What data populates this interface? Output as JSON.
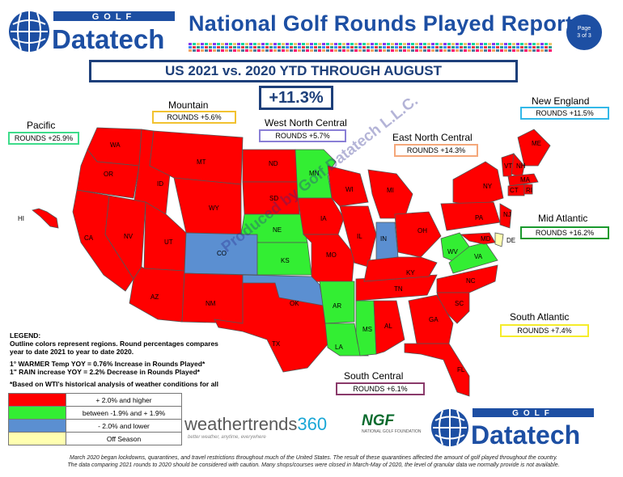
{
  "header": {
    "brand_top": "GOLF",
    "brand_main": "Datatech",
    "title": "National Golf Rounds Played Report",
    "page_badge_line1": "Page",
    "page_badge_line2": "3 of 3",
    "subtitle": "US 2021 vs. 2020 YTD THROUGH AUGUST",
    "total": "+11.3%"
  },
  "regions": {
    "pacific": {
      "name": "Pacific",
      "rounds": "ROUNDS +25.9%",
      "color": "#3ddc8a"
    },
    "mountain": {
      "name": "Mountain",
      "rounds": "ROUNDS +5.6%",
      "color": "#f2c230"
    },
    "west_north_central": {
      "name": "West North Central",
      "rounds": "ROUNDS +5.7%",
      "color": "#8a7fd6"
    },
    "east_north_central": {
      "name": "East North Central",
      "rounds": "ROUNDS +14.3%",
      "color": "#f4a77a"
    },
    "new_england": {
      "name": "New England",
      "rounds": "ROUNDS +11.5%",
      "color": "#33b8e8"
    },
    "mid_atlantic": {
      "name": "Mid Atlantic",
      "rounds": "ROUNDS +16.2%",
      "color": "#1a9a2e"
    },
    "south_atlantic": {
      "name": "South Atlantic",
      "rounds": "ROUNDS +7.4%",
      "color": "#f5ec2a"
    },
    "south_central": {
      "name": "South Central",
      "rounds": "ROUNDS +6.1%",
      "color": "#8a3a6a"
    }
  },
  "map_colors": {
    "up": "#ff0000",
    "flat": "#33ee33",
    "down": "#5b8fd1",
    "off": "#ffffb0"
  },
  "states": {
    "WA": {
      "label": "WA",
      "status": "up"
    },
    "OR": {
      "label": "OR",
      "status": "up"
    },
    "CA": {
      "label": "CA",
      "status": "up"
    },
    "ID": {
      "label": "ID",
      "status": "up"
    },
    "NV": {
      "label": "NV",
      "status": "up"
    },
    "MT": {
      "label": "MT",
      "status": "up"
    },
    "WY": {
      "label": "WY",
      "status": "up"
    },
    "UT": {
      "label": "UT",
      "status": "up"
    },
    "CO": {
      "label": "CO",
      "status": "down"
    },
    "AZ": {
      "label": "AZ",
      "status": "up"
    },
    "NM": {
      "label": "NM",
      "status": "up"
    },
    "HI": {
      "label": "HI",
      "status": "up"
    },
    "ND": {
      "label": "ND",
      "status": "up"
    },
    "SD": {
      "label": "SD",
      "status": "up"
    },
    "NE": {
      "label": "NE",
      "status": "flat"
    },
    "KS": {
      "label": "KS",
      "status": "flat"
    },
    "MN": {
      "label": "MN",
      "status": "flat"
    },
    "IA": {
      "label": "IA",
      "status": "up"
    },
    "MO": {
      "label": "MO",
      "status": "up"
    },
    "WI": {
      "label": "WI",
      "status": "up"
    },
    "MI": {
      "label": "MI",
      "status": "up"
    },
    "IL": {
      "label": "IL",
      "status": "up"
    },
    "IN": {
      "label": "IN",
      "status": "down"
    },
    "OH": {
      "label": "OH",
      "status": "up"
    },
    "TX": {
      "label": "TX",
      "status": "up"
    },
    "OK": {
      "label": "OK",
      "status": "down"
    },
    "AR": {
      "label": "AR",
      "status": "flat"
    },
    "LA": {
      "label": "LA",
      "status": "flat"
    },
    "MS": {
      "label": "MS",
      "status": "flat"
    },
    "AL": {
      "label": "AL",
      "status": "up"
    },
    "TN": {
      "label": "TN",
      "status": "up"
    },
    "KY": {
      "label": "KY",
      "status": "up"
    },
    "NY": {
      "label": "NY",
      "status": "up"
    },
    "PA": {
      "label": "PA",
      "status": "up"
    },
    "NJ": {
      "label": "NJ",
      "status": "up"
    },
    "ME": {
      "label": "ME",
      "status": "up"
    },
    "NH": {
      "label": "NH",
      "status": "up"
    },
    "VT": {
      "label": "VT",
      "status": "up"
    },
    "MA": {
      "label": "MA",
      "status": "up"
    },
    "CT": {
      "label": "CT",
      "status": "up"
    },
    "RI": {
      "label": "RI",
      "status": "up"
    },
    "WV": {
      "label": "WV",
      "status": "flat"
    },
    "VA": {
      "label": "VA",
      "status": "flat"
    },
    "MD": {
      "label": "MD",
      "status": "up"
    },
    "DE": {
      "label": "DE",
      "status": "off"
    },
    "NC": {
      "label": "NC",
      "status": "up"
    },
    "SC": {
      "label": "SC",
      "status": "up"
    },
    "GA": {
      "label": "GA",
      "status": "up"
    },
    "FL": {
      "label": "FL",
      "status": "up"
    }
  },
  "watermark": "Produced by Golf Datatech L.L.C.",
  "legend": {
    "heading": "LEGEND:",
    "line1": "Outline colors represent regions. Round percentages compares",
    "line2": "year to date 2021 to year to date 2020.",
    "temp": "1° WARMER Temp YOY = 0.76% Increase in Rounds Played*",
    "rain": "1\" RAIN increase YOY = 2.2% Decrease in Rounds Played*",
    "basis": "*Based on WTI's historical analysis of weather conditions for all",
    "rows": [
      {
        "label": "+ 2.0% and higher",
        "color": "#ff0000"
      },
      {
        "label": "between -1.9% and + 1.9%",
        "color": "#33ee33"
      },
      {
        "label": "- 2.0% and lower",
        "color": "#5b8fd1"
      },
      {
        "label": "Off Season",
        "color": "#ffffb0"
      }
    ]
  },
  "logos": {
    "weathertrends_a": "weathertrends",
    "weathertrends_b": "360",
    "weathertrends_tag": "better weather, anytime, everywhere",
    "ngf": "NGF",
    "ngf_tag": "NATIONAL GOLF FOUNDATION"
  },
  "footnote": {
    "line1": "March 2020 began lockdowns, quarantines, and travel restrictions throughout much of the United States. The result of these quarantines affected the amount of golf played throughout the country.",
    "line2": "The data comparing 2021 rounds to 2020 should be considered with caution. Many shops/courses were closed in March-May of 2020, the level of granular data we normally provide is not available."
  }
}
